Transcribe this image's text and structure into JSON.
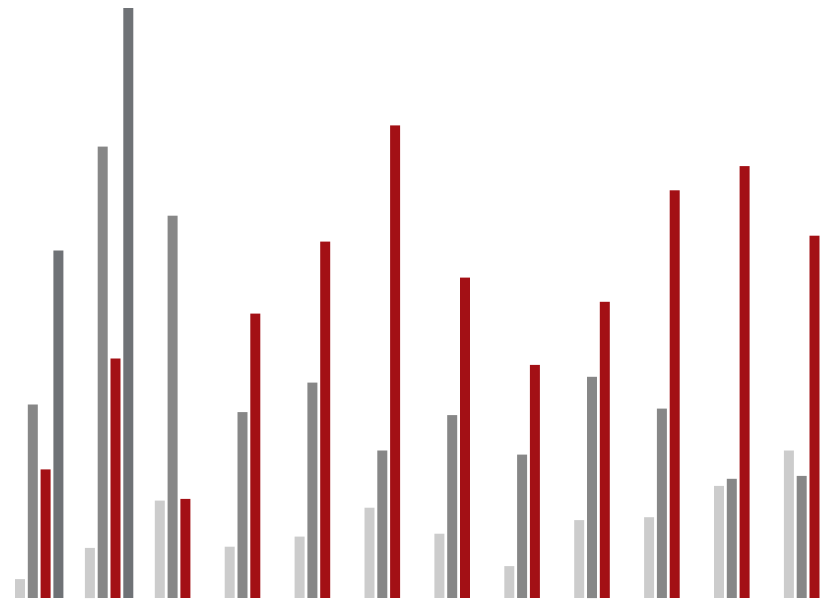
{
  "chart_data": {
    "type": "bar",
    "title": "",
    "xlabel": "",
    "ylabel": "",
    "grid": false,
    "legend": "none",
    "ylim": [
      0,
      100
    ],
    "categories": [
      "",
      "",
      "",
      "",
      "",
      "",
      "",
      "",
      "",
      "",
      "",
      ""
    ],
    "series": [
      {
        "color": "#cccccc",
        "values": [
          3.2,
          8.5,
          16.5,
          8.7,
          10.4,
          15.3,
          10.9,
          5.4,
          13.2,
          13.7,
          19.0,
          25.0
        ]
      },
      {
        "color": "#878787",
        "values": [
          32.8,
          76.5,
          64.8,
          31.5,
          36.5,
          25.0,
          31.0,
          24.3,
          37.5,
          32.1,
          20.2,
          20.7
        ]
      },
      {
        "color": "#a31015",
        "values": [
          21.8,
          40.6,
          16.8,
          48.2,
          60.4,
          80.1,
          54.3,
          39.5,
          50.2,
          69.1,
          73.2,
          61.4
        ]
      }
    ],
    "extra_bars": [
      {
        "color": "#6f7276",
        "group": 0,
        "value": 58.9
      },
      {
        "color": "#6f7276",
        "group": 1,
        "value": 100.0
      }
    ]
  }
}
